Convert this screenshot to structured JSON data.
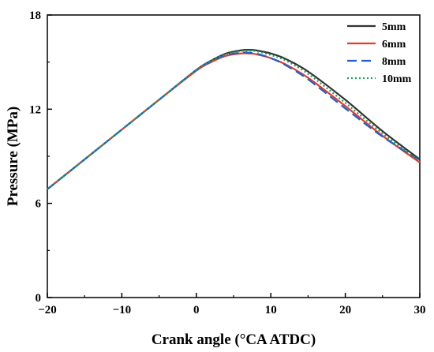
{
  "chart_data": {
    "type": "line",
    "xlabel": "Crank angle (°CA ATDC)",
    "ylabel": "Pressure (MPa)",
    "xlim": [
      -20,
      30
    ],
    "ylim": [
      0,
      18
    ],
    "xticks": [
      -20,
      -10,
      0,
      10,
      20,
      30
    ],
    "yticks": [
      0,
      6,
      12,
      18
    ],
    "tick_labels_x": [
      "−20",
      "−10",
      "0",
      "10",
      "20",
      "30"
    ],
    "tick_labels_y": [
      "0",
      "6",
      "12",
      "18"
    ],
    "grid": false,
    "legend_position": "top-right",
    "series": [
      {
        "name": "5mm",
        "color": "#333333",
        "style": "solid",
        "x": [
          -20,
          -15,
          -10,
          -5,
          0,
          2,
          4,
          6,
          7,
          8,
          10,
          12,
          15,
          20,
          25,
          30
        ],
        "y": [
          6.9,
          8.8,
          10.7,
          12.6,
          14.5,
          15.1,
          15.55,
          15.75,
          15.78,
          15.75,
          15.55,
          15.2,
          14.4,
          12.6,
          10.6,
          8.8
        ]
      },
      {
        "name": "6mm",
        "color": "#e8392a",
        "style": "solid",
        "x": [
          -20,
          -15,
          -10,
          -5,
          0,
          2,
          4,
          6,
          7,
          8,
          10,
          12,
          15,
          20,
          25,
          30
        ],
        "y": [
          6.9,
          8.8,
          10.7,
          12.6,
          14.45,
          15.0,
          15.4,
          15.55,
          15.55,
          15.5,
          15.25,
          14.85,
          14.0,
          12.2,
          10.3,
          8.6
        ]
      },
      {
        "name": "8mm",
        "color": "#1f5fd1",
        "style": "dashed",
        "x": [
          -20,
          -15,
          -10,
          -5,
          0,
          2,
          4,
          6,
          7,
          8,
          10,
          12,
          15,
          20,
          25,
          30
        ],
        "y": [
          6.9,
          8.8,
          10.7,
          12.6,
          14.5,
          15.05,
          15.45,
          15.6,
          15.6,
          15.55,
          15.25,
          14.8,
          13.9,
          12.05,
          10.25,
          8.75
        ]
      },
      {
        "name": "10mm",
        "color": "#1aa35a",
        "style": "dotted",
        "x": [
          -20,
          -15,
          -10,
          -5,
          0,
          2,
          4,
          6,
          7,
          8,
          10,
          12,
          15,
          20,
          25,
          30
        ],
        "y": [
          6.9,
          8.8,
          10.7,
          12.6,
          14.5,
          15.1,
          15.5,
          15.7,
          15.72,
          15.7,
          15.45,
          15.1,
          14.25,
          12.4,
          10.45,
          8.7
        ]
      }
    ]
  }
}
